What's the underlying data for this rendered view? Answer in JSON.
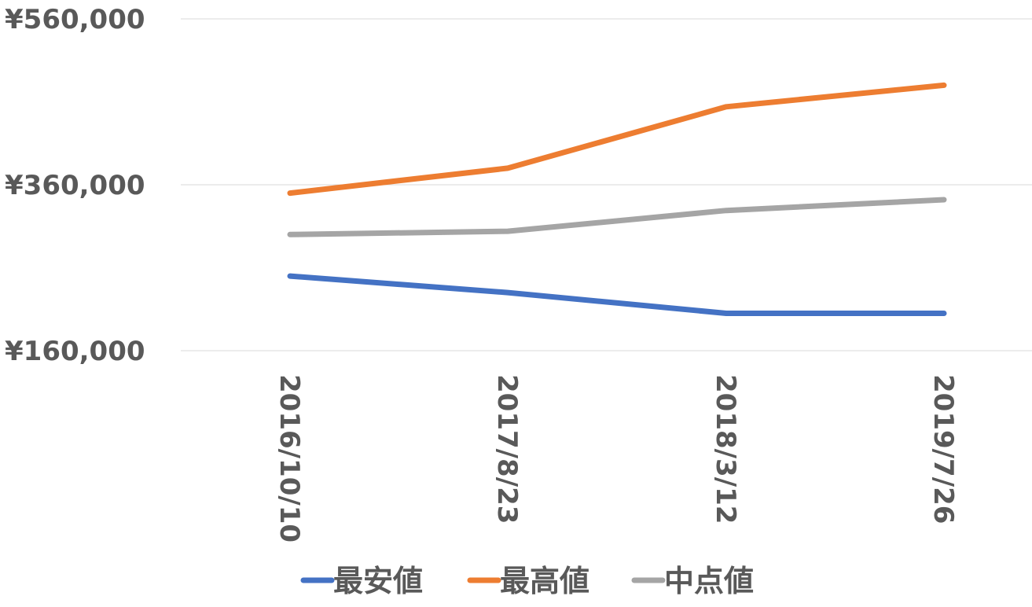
{
  "chart_data": {
    "type": "line",
    "title": "",
    "xlabel": "",
    "ylabel": "",
    "categories": [
      "2016/10/10",
      "2017/8/23",
      "2018/3/12",
      "2019/7/26"
    ],
    "y_ticks": [
      "¥160,000",
      "¥360,000",
      "¥560,000"
    ],
    "ylim": [
      160000,
      560000
    ],
    "grid": true,
    "legend_position": "bottom",
    "series": [
      {
        "name": "最安値",
        "color": "#4472C4",
        "values": [
          250000,
          230000,
          205000,
          205000
        ]
      },
      {
        "name": "最高値",
        "color": "#ED7D31",
        "values": [
          350000,
          380000,
          454000,
          480000
        ]
      },
      {
        "name": "中点値",
        "color": "#A5A5A5",
        "values": [
          300000,
          304000,
          329000,
          342000
        ]
      }
    ]
  }
}
